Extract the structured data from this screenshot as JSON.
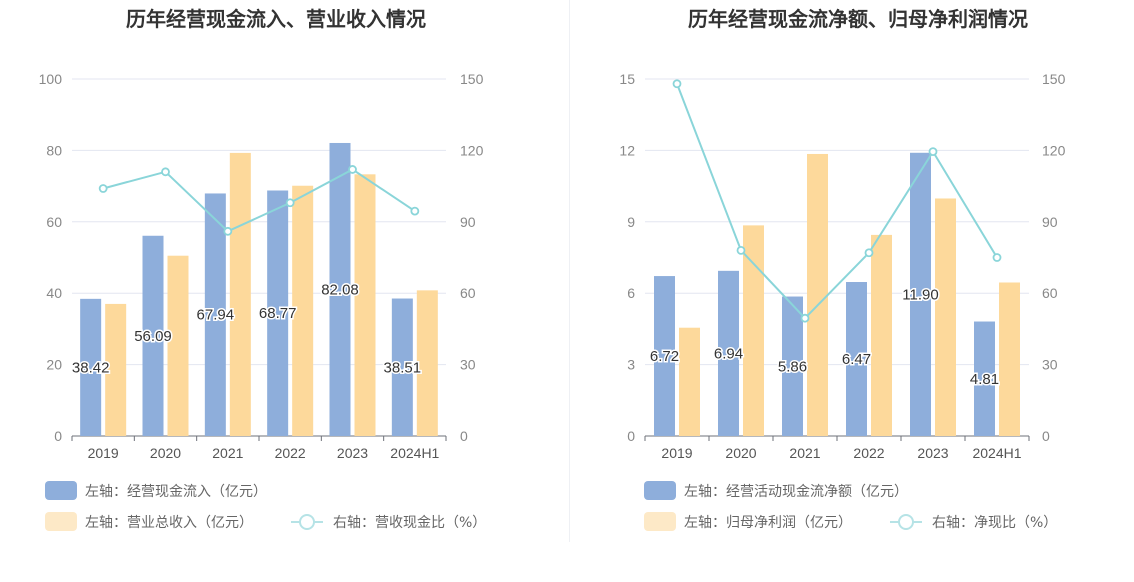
{
  "chart_data": [
    {
      "type": "bar",
      "title": "历年经营现金流入、营业收入情况",
      "categories": [
        "2019",
        "2020",
        "2021",
        "2022",
        "2023",
        "2024H1"
      ],
      "left_axis": {
        "ylim": [
          0,
          100
        ],
        "ticks": [
          0,
          20,
          40,
          60,
          80,
          100
        ]
      },
      "right_axis": {
        "ylim": [
          0,
          150
        ],
        "ticks": [
          0,
          30,
          60,
          90,
          120,
          150
        ]
      },
      "series": [
        {
          "name": "左轴：经营现金流入（亿元）",
          "kind": "bar",
          "axis": "left",
          "color": "#8eaedb",
          "values": [
            38.42,
            56.09,
            67.94,
            68.77,
            82.08,
            38.51
          ],
          "labels": [
            "38.42",
            "56.09",
            "67.94",
            "68.77",
            "82.08",
            "38.51"
          ]
        },
        {
          "name": "左轴：营业总收入（亿元）",
          "kind": "bar",
          "axis": "left",
          "color": "#fdd99b",
          "values": [
            37.0,
            50.5,
            79.3,
            70.1,
            73.3,
            40.8
          ]
        },
        {
          "name": "右轴：营收现金比（%）",
          "kind": "line",
          "axis": "right",
          "color": "#8ad5d9",
          "values": [
            104.0,
            111.0,
            86.0,
            98.0,
            112.0,
            94.5
          ]
        }
      ],
      "grid": true,
      "legend_position": "bottom-left"
    },
    {
      "type": "bar",
      "title": "历年经营现金流净额、归母净利润情况",
      "categories": [
        "2019",
        "2020",
        "2021",
        "2022",
        "2023",
        "2024H1"
      ],
      "left_axis": {
        "ylim": [
          0,
          15
        ],
        "ticks": [
          0,
          3,
          6,
          9,
          12,
          15
        ]
      },
      "right_axis": {
        "ylim": [
          0,
          150
        ],
        "ticks": [
          0,
          30,
          60,
          90,
          120,
          150
        ]
      },
      "series": [
        {
          "name": "左轴：经营活动现金流净额（亿元）",
          "kind": "bar",
          "axis": "left",
          "color": "#8eaedb",
          "values": [
            6.72,
            6.94,
            5.86,
            6.47,
            11.9,
            4.81
          ],
          "labels": [
            "6.72",
            "6.94",
            "5.86",
            "6.47",
            "11.90",
            "4.81"
          ]
        },
        {
          "name": "左轴：归母净利润（亿元）",
          "kind": "bar",
          "axis": "left",
          "color": "#fdd99b",
          "values": [
            4.55,
            8.85,
            11.85,
            8.45,
            9.98,
            6.45
          ]
        },
        {
          "name": "右轴：净现比（%）",
          "kind": "line",
          "axis": "right",
          "color": "#8ad5d9",
          "values": [
            148.0,
            78.0,
            49.5,
            77.0,
            119.5,
            75.0
          ]
        }
      ],
      "grid": true,
      "legend_position": "bottom-left"
    }
  ]
}
